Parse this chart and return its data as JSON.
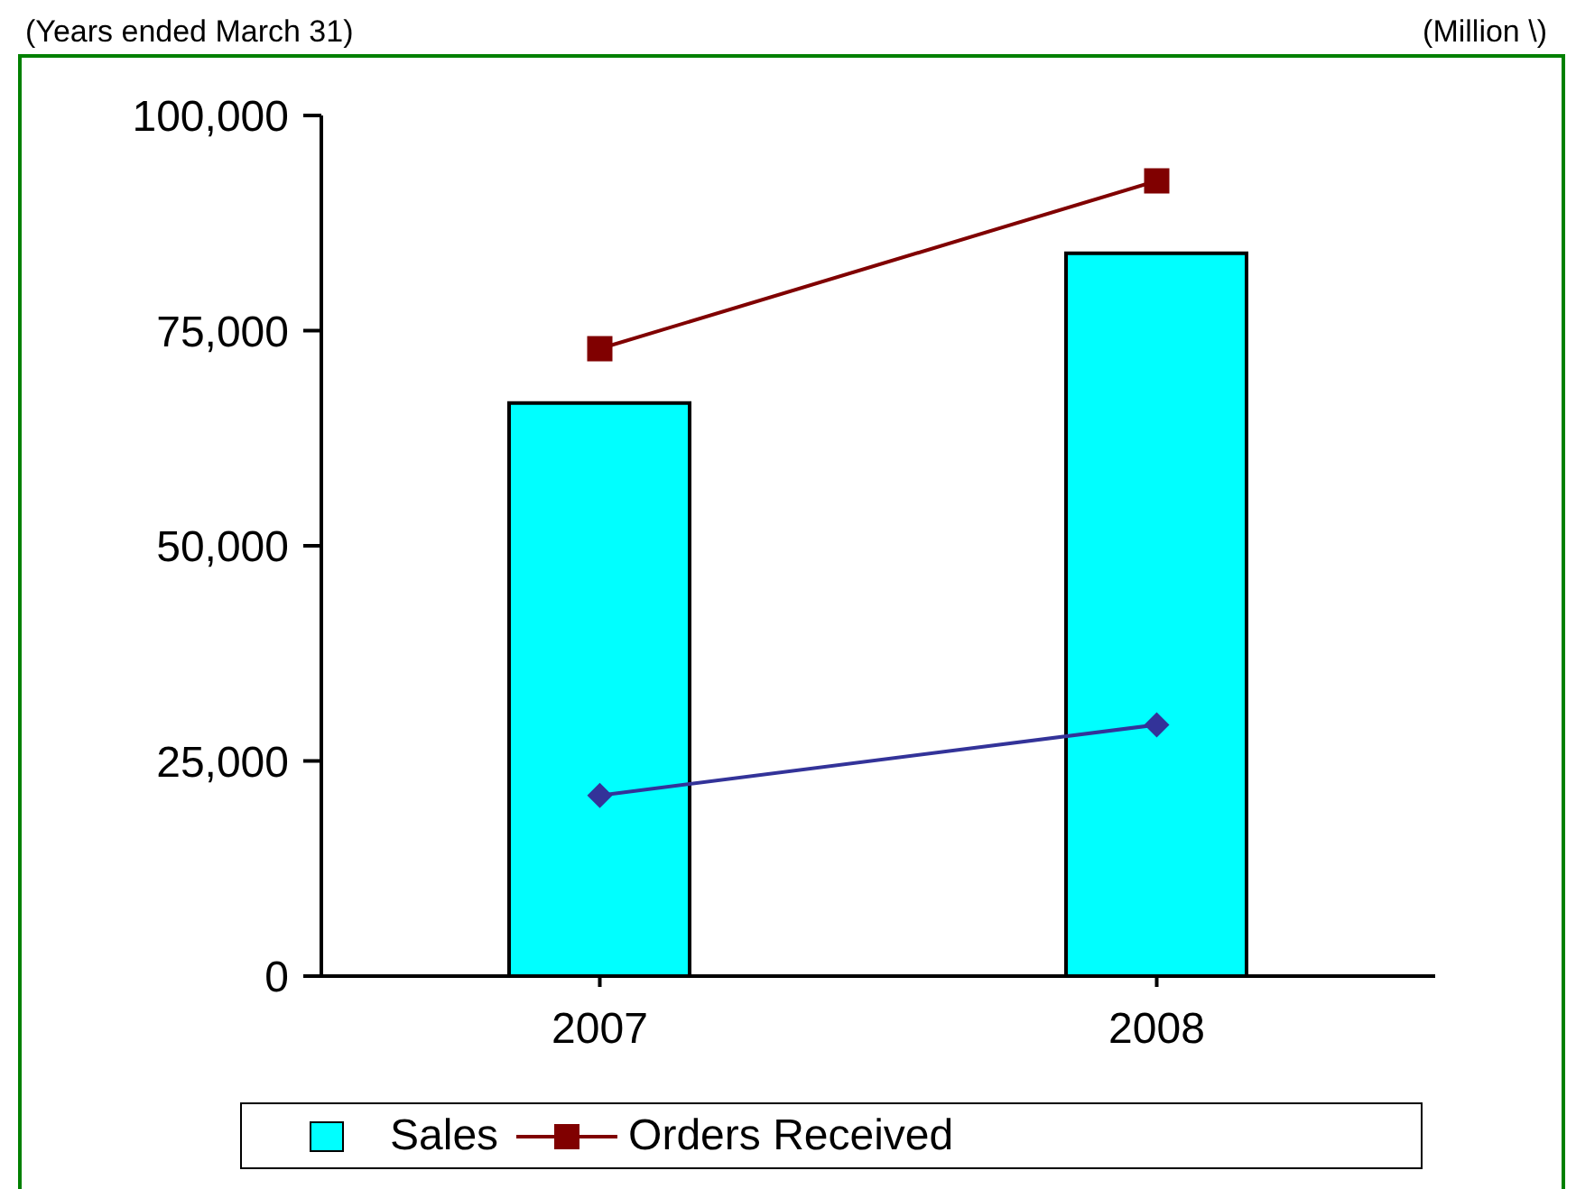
{
  "chart_data": {
    "type": "bar",
    "annotations": [
      "(Years ended March 31)",
      "(Million \\)"
    ],
    "categories": [
      "2007",
      "2008"
    ],
    "series": [
      {
        "name": "Sales",
        "color": "#00ffff",
        "values": [
          66600,
          84000
        ]
      },
      {
        "name": "Orders Received",
        "type": "line",
        "color": "#800000",
        "marker": "square",
        "values": [
          72900,
          92400
        ]
      },
      {
        "type": "line",
        "color": "#333399",
        "marker": "diamond",
        "values": [
          21000,
          29200
        ]
      }
    ],
    "ylim": [
      0,
      100000
    ],
    "yticks": [
      0,
      {
        "value": 25000,
        "label": "25,000"
      },
      {
        "value": 50000,
        "label": "50,000"
      },
      {
        "value": 75000,
        "label": "75,000"
      },
      {
        "value": 100000,
        "label": "100,000"
      }
    ],
    "legend": "bottom"
  }
}
